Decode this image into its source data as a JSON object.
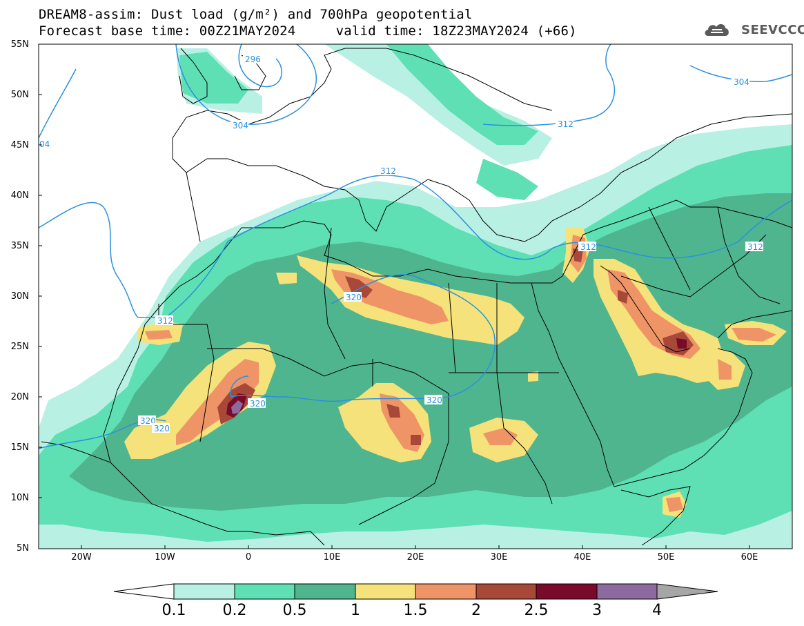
{
  "title": {
    "line1": "DREAM8-assim: Dust load (g/m²) and 700hPa geopotential",
    "line2": "Forecast base time: 00Z21MAY2024     valid time: 18Z23MAY2024 (+66)"
  },
  "logo": {
    "text": "SEEVCCC",
    "icon": "cloud-logo-icon"
  },
  "map": {
    "lat_labels": [
      "55N",
      "50N",
      "45N",
      "40N",
      "35N",
      "30N",
      "25N",
      "20N",
      "15N",
      "10N",
      "5N"
    ],
    "lon_labels": [
      "20W",
      "10W",
      "0",
      "10E",
      "20E",
      "30E",
      "40E",
      "50E",
      "60E"
    ],
    "contour_labels": [
      "296",
      "304",
      "304",
      "312",
      "312",
      "312",
      "312",
      "320",
      "320",
      "320",
      "320",
      "320",
      "04"
    ]
  },
  "colorbar": {
    "labels": [
      "0.1",
      "0.2",
      "0.5",
      "1",
      "1.5",
      "2",
      "2.5",
      "3",
      "4"
    ],
    "colors": [
      "#ffffff",
      "#b8f0e4",
      "#5ee0b4",
      "#4fb58f",
      "#f5e27a",
      "#ef9466",
      "#a84838",
      "#7a0a2a",
      "#8c6aa0",
      "#a6a6a6"
    ]
  },
  "colors": {
    "c01": "#b8f0e4",
    "c02": "#5ee0b4",
    "c05": "#4fb58f",
    "c1": "#f5e27a",
    "c15": "#ef9466",
    "c2": "#a84838",
    "c25": "#7a0a2a",
    "c3": "#8c6aa0",
    "contour": "#2a90e0"
  }
}
